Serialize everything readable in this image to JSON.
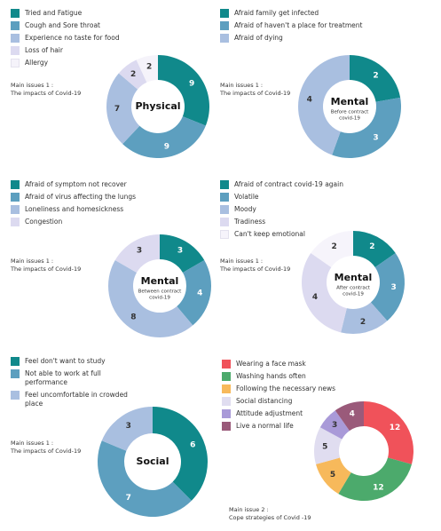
{
  "chart_data": [
    {
      "type": "pie",
      "categories": [
        "Tried and Fatigue",
        "Cough and Sore throat",
        "Experience no taste for food",
        "Loss of hair",
        "Allergy"
      ],
      "values": [
        9,
        9,
        7,
        2,
        2
      ],
      "colors": [
        "#10898b",
        "#5d9fbf",
        "#a9bfe0",
        "#dcdaf0",
        "#f5f3fa"
      ],
      "center_label": "Physical",
      "note": [
        "Main issues 1 :",
        "The impacts of Covid-19"
      ]
    },
    {
      "type": "pie",
      "categories": [
        "Afraid family get infected",
        "Afraid of haven't a place for treatment",
        "Afraid of dying"
      ],
      "values": [
        2,
        3,
        4
      ],
      "colors": [
        "#10898b",
        "#5d9fbf",
        "#a9bfe0"
      ],
      "center_label": "Mental",
      "center_sublabel": [
        "Before contract",
        "covid-19"
      ],
      "note": [
        "Main issues 1 :",
        "The impacts of Covid-19"
      ]
    },
    {
      "type": "pie",
      "categories": [
        "Afraid of symptom not recover",
        "Afraid of virus affecting the lungs",
        "Loneliness and homesickness",
        "Congestion"
      ],
      "values": [
        3,
        4,
        8,
        3
      ],
      "colors": [
        "#10898b",
        "#5d9fbf",
        "#a9bfe0",
        "#dcdaf0"
      ],
      "center_label": "Mental",
      "center_sublabel": [
        "Between contract",
        "covid-19"
      ],
      "note": [
        "Main issues 1 :",
        "The impacts of Covid-19"
      ]
    },
    {
      "type": "pie",
      "categories": [
        "Afraid of contract covid-19 again",
        "Volatile",
        "Moody",
        "Tradiness",
        "Can't keep emotional"
      ],
      "values": [
        2,
        3,
        2,
        4,
        2
      ],
      "colors": [
        "#10898b",
        "#5d9fbf",
        "#a9bfe0",
        "#dcdaf0",
        "#f6f4fb"
      ],
      "center_label": "Mental",
      "center_sublabel": [
        "After contract",
        "covid-19"
      ],
      "note": [
        "Main issues 1 :",
        "The impacts of Covid-19"
      ]
    },
    {
      "type": "pie",
      "categories": [
        "Feel don't want to study",
        "Not able to work at full performance",
        "Feel uncomfortable in crowded place"
      ],
      "values": [
        6,
        7,
        3
      ],
      "colors": [
        "#10898b",
        "#5d9fbf",
        "#a9bfe0"
      ],
      "center_label": "Social",
      "note": [
        "Main issues 1 :",
        "The impacts of Covid-19"
      ]
    },
    {
      "type": "pie",
      "categories": [
        "Wearing a face mask",
        "Washing hands often",
        "Following the necessary news",
        "Social distancing",
        "Attitude adjustment",
        "Live a normal life"
      ],
      "values": [
        12,
        12,
        5,
        5,
        3,
        4
      ],
      "colors": [
        "#f0525a",
        "#4caa6c",
        "#f7b95b",
        "#e0ddf0",
        "#a99ad8",
        "#9a5a7a"
      ],
      "note": [
        "Main issue 2 :",
        "Cope strategies of Covid -19"
      ]
    }
  ]
}
